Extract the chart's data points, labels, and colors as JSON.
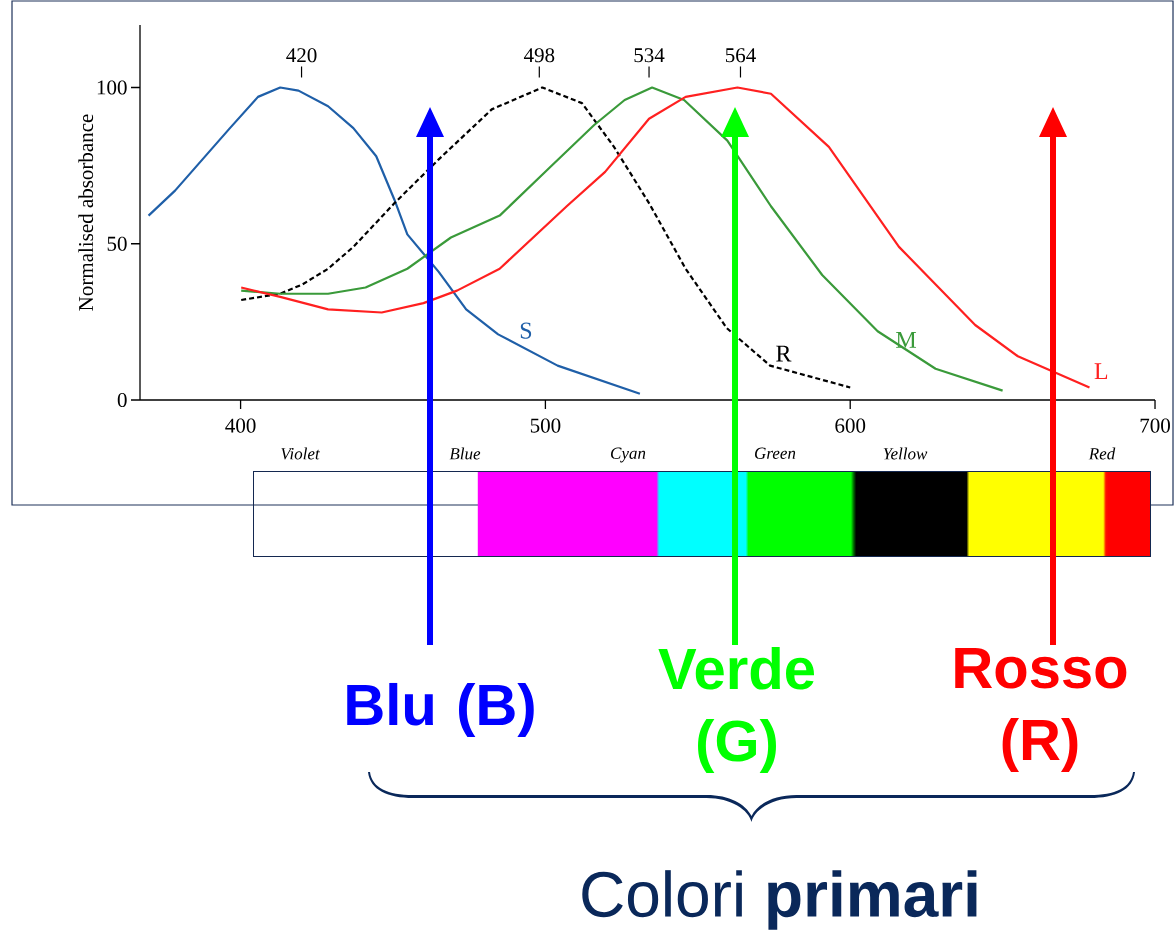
{
  "chart_data": {
    "type": "line",
    "ylabel": "Normalised absorbance",
    "xlim": [
      367,
      700
    ],
    "xticks": [
      400,
      500,
      600,
      700
    ],
    "ylim": [
      0,
      120
    ],
    "yticks": [
      0,
      50,
      100
    ],
    "series": [
      {
        "name": "S",
        "color": "#1f5fa8",
        "x": [
          369.8,
          378.5,
          387.5,
          396.5,
          405.7,
          413,
          419,
          428.7,
          437,
          444.5,
          450.5,
          454.7,
          465,
          474,
          484.5,
          504,
          531
        ],
        "values": [
          59,
          67,
          77,
          87,
          97,
          100,
          99,
          94,
          87,
          78,
          64,
          53,
          41,
          29,
          21,
          11,
          2
        ]
      },
      {
        "name": "R",
        "color": "#000000",
        "line_style": "dashed",
        "x": [
          400.2,
          413,
          420.3,
          428.7,
          437,
          450.5,
          465,
          482.4,
          499,
          512,
          522.5,
          534,
          546,
          559.5,
          573.7,
          600
        ],
        "values": [
          32,
          34,
          37,
          42,
          49,
          63,
          77,
          93,
          100,
          95,
          81,
          63,
          42,
          23,
          11,
          4
        ]
      },
      {
        "name": "M",
        "color": "#3a9a3a",
        "x": [
          400.2,
          413,
          428.7,
          441,
          454.7,
          469,
          485,
          501,
          516,
          526,
          535,
          545.5,
          559.7,
          574,
          590.8,
          609,
          628,
          650
        ],
        "values": [
          35,
          34,
          34,
          36,
          42,
          52,
          59,
          74,
          88,
          96,
          100,
          96,
          83,
          62,
          40,
          22,
          10,
          3
        ]
      },
      {
        "name": "L",
        "color": "#ff2020",
        "x": [
          400.2,
          413,
          428.7,
          446.3,
          460,
          471,
          485,
          507,
          519.6,
          534,
          546,
          563,
          574,
          593,
          616,
          641,
          655,
          678.5
        ],
        "values": [
          36,
          33,
          29,
          28,
          31,
          35,
          42,
          62,
          73,
          90,
          97,
          100,
          98,
          81,
          49,
          24,
          14,
          4
        ]
      }
    ],
    "annotations": [
      {
        "text": "420",
        "x": 420,
        "y": 100
      },
      {
        "text": "498",
        "x": 498,
        "y": 100
      },
      {
        "text": "534",
        "x": 534,
        "y": 100
      },
      {
        "text": "564",
        "x": 564,
        "y": 100
      },
      "Violet",
      "Blue",
      "Cyan",
      "Green",
      "Yellow",
      "Red",
      "Blu (B)",
      "Verde (G)",
      "Rosso (R)",
      "Colori **primari**"
    ]
  }
}
